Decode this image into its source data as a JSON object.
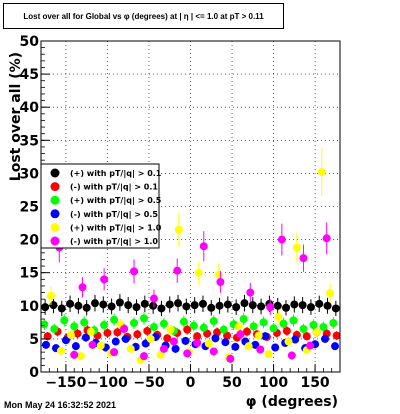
{
  "title": "Lost over all for Global vs φ (degrees) at | η | <= 1.0 at pT > 0.11",
  "footer": "Mon May 24 16:32:52 2021",
  "chart_data": {
    "type": "scatter",
    "title": "Lost over all for Global vs φ (degrees) at | η | <= 1.0 at pT > 0.11",
    "xlabel": "φ (degrees)",
    "ylabel": "Lost over all (%)",
    "xlim": [
      -180,
      180
    ],
    "ylim": [
      0,
      50
    ],
    "xticks": [
      -150,
      -100,
      -50,
      0,
      50,
      100,
      150
    ],
    "yticks": [
      0,
      5,
      10,
      15,
      20,
      25,
      30,
      35,
      40,
      45,
      50
    ],
    "grid": true,
    "legend_position": "left-middle",
    "series": [
      {
        "name": "(+) with pT/|q| > 0.1",
        "color": "#000000",
        "x": [
          -175,
          -165,
          -155,
          -145,
          -135,
          -125,
          -115,
          -105,
          -95,
          -85,
          -75,
          -65,
          -55,
          -45,
          -35,
          -25,
          -15,
          -5,
          5,
          15,
          25,
          35,
          45,
          55,
          65,
          75,
          85,
          95,
          105,
          115,
          125,
          135,
          145,
          155,
          165,
          175
        ],
        "y": [
          9.8,
          10.1,
          9.6,
          10.3,
          10.0,
          9.7,
          10.4,
          10.2,
          9.9,
          10.5,
          10.1,
          9.8,
          10.3,
          10.0,
          9.6,
          10.2,
          10.4,
          9.9,
          10.1,
          10.3,
          9.7,
          10.0,
          10.2,
          9.8,
          10.4,
          10.1,
          9.9,
          10.3,
          10.0,
          9.7,
          10.2,
          10.1,
          9.8,
          10.3,
          10.0,
          9.6
        ]
      },
      {
        "name": "(-) with pT/|q| > 0.1",
        "color": "#ff0000",
        "x": [
          -172,
          -160,
          -148,
          -136,
          -124,
          -112,
          -100,
          -88,
          -76,
          -64,
          -52,
          -40,
          -28,
          -16,
          -4,
          8,
          20,
          32,
          44,
          56,
          68,
          80,
          92,
          104,
          116,
          128,
          140,
          152,
          164,
          176
        ],
        "y": [
          5.4,
          6.1,
          5.2,
          5.8,
          6.3,
          5.5,
          5.9,
          6.0,
          5.3,
          5.7,
          6.2,
          5.6,
          5.1,
          5.9,
          6.4,
          5.4,
          5.8,
          6.0,
          5.5,
          5.2,
          6.1,
          5.7,
          5.3,
          5.9,
          6.2,
          5.6,
          5.4,
          6.0,
          5.8,
          5.5
        ]
      },
      {
        "name": "(+) with pT/|q| > 0.5",
        "color": "#00ff00",
        "x": [
          -176,
          -164,
          -152,
          -140,
          -128,
          -116,
          -104,
          -92,
          -80,
          -68,
          -56,
          -44,
          -32,
          -20,
          -8,
          4,
          16,
          28,
          40,
          52,
          64,
          76,
          88,
          100,
          112,
          124,
          136,
          148,
          160,
          172
        ],
        "y": [
          7.2,
          6.5,
          7.8,
          6.9,
          7.5,
          6.3,
          7.1,
          7.9,
          6.6,
          7.4,
          8.1,
          6.8,
          7.3,
          6.2,
          7.6,
          7.0,
          6.7,
          7.7,
          6.4,
          7.2,
          8.0,
          6.9,
          7.5,
          6.6,
          7.3,
          7.8,
          6.5,
          7.1,
          6.8,
          7.4
        ]
      },
      {
        "name": "(-) with pT/|q| > 0.5",
        "color": "#0000ff",
        "x": [
          -174,
          -162,
          -150,
          -138,
          -126,
          -114,
          -102,
          -90,
          -78,
          -66,
          -54,
          -42,
          -30,
          -18,
          -6,
          6,
          18,
          30,
          42,
          54,
          66,
          78,
          90,
          102,
          114,
          126,
          138,
          150,
          162,
          174
        ],
        "y": [
          4.1,
          3.6,
          4.8,
          3.9,
          5.2,
          4.4,
          3.7,
          4.6,
          5.0,
          3.8,
          4.3,
          5.3,
          4.0,
          3.5,
          4.7,
          4.2,
          3.9,
          5.1,
          4.5,
          3.8,
          4.6,
          4.1,
          5.4,
          3.7,
          4.4,
          4.9,
          3.6,
          4.2,
          5.0,
          3.9
        ]
      },
      {
        "name": "(+) with pT/|q| > 1.0",
        "color": "#ffff00",
        "x": [
          -168,
          -156,
          -144,
          -132,
          -120,
          -108,
          -96,
          -84,
          -72,
          -60,
          -48,
          -36,
          -24,
          -14,
          -2,
          10,
          22,
          34,
          46,
          58,
          70,
          82,
          94,
          106,
          118,
          128,
          140,
          152,
          158,
          168
        ],
        "y": [
          11.5,
          3.2,
          5.6,
          2.4,
          6.1,
          4.0,
          2.9,
          7.2,
          3.5,
          1.8,
          5.0,
          2.6,
          6.4,
          21.5,
          3.0,
          15.0,
          4.3,
          14.7,
          2.2,
          6.8,
          3.9,
          5.5,
          2.7,
          8.3,
          4.6,
          18.8,
          3.3,
          6.0,
          30.2,
          11.9
        ]
      },
      {
        "name": "(-) with pT/|q| > 1.0",
        "color": "#ff00ff",
        "x": [
          -158,
          -140,
          -130,
          -118,
          -104,
          -92,
          -80,
          -68,
          -56,
          -44,
          -32,
          -20,
          -16,
          -4,
          8,
          16,
          28,
          36,
          48,
          60,
          72,
          84,
          96,
          110,
          122,
          136,
          144,
          164
        ],
        "y": [
          18.8,
          2.6,
          12.8,
          4.1,
          14.0,
          3.0,
          6.5,
          15.2,
          2.4,
          11.1,
          3.5,
          4.6,
          15.3,
          2.8,
          4.4,
          19.0,
          3.1,
          13.6,
          2.0,
          5.7,
          12.0,
          3.4,
          9.8,
          20.0,
          2.5,
          17.2,
          4.0,
          20.2
        ]
      }
    ]
  }
}
